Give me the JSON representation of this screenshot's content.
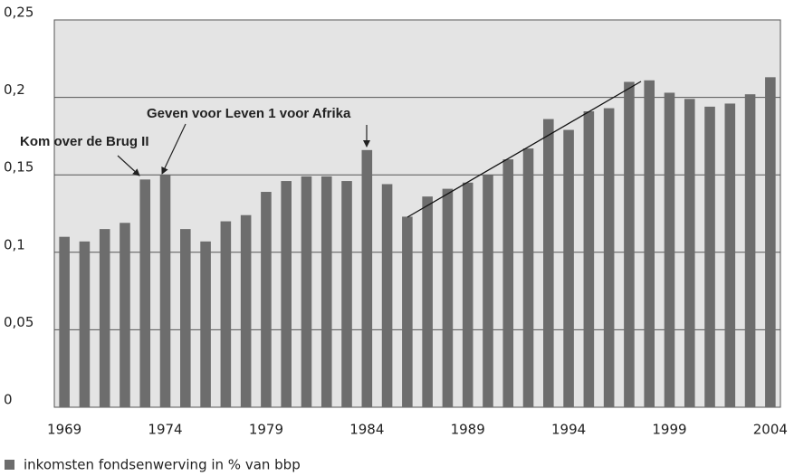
{
  "chart_data": {
    "type": "bar",
    "annotations": [
      "Kom over de Brug II",
      "Geven voor Leven  1 voor Afrika"
    ],
    "categories": [
      "1969",
      null,
      null,
      null,
      null,
      "1974",
      null,
      null,
      null,
      null,
      "1979",
      null,
      null,
      null,
      null,
      "1984",
      null,
      null,
      null,
      null,
      "1989",
      null,
      null,
      null,
      null,
      "1994",
      null,
      null,
      null,
      null,
      "1999",
      null,
      null,
      null,
      null,
      "2004"
    ],
    "series": [
      {
        "name": "inkomsten fondsenwerving in % van bbp",
        "color": "#6d6d6d",
        "values": [
          0.11,
          0.107,
          0.115,
          0.119,
          0.147,
          0.15,
          0.115,
          0.107,
          0.12,
          0.124,
          0.139,
          0.146,
          0.149,
          0.149,
          0.146,
          0.166,
          0.144,
          0.123,
          0.136,
          0.141,
          0.145,
          0.15,
          0.16,
          0.167,
          0.186,
          0.179,
          0.191,
          0.193,
          0.21,
          0.211,
          0.203,
          0.199,
          0.194,
          0.196,
          0.202,
          0.213
        ]
      }
    ],
    "ylim": [
      0,
      0.25
    ],
    "yticks": [
      0,
      {
        "value": 0.05,
        "label": "0,05"
      },
      {
        "value": 0.1,
        "label": "0,1"
      },
      {
        "value": 0.15,
        "label": "0,15"
      },
      {
        "value": 0.2,
        "label": "0,2"
      },
      {
        "value": 0.25,
        "label": "0,25"
      }
    ],
    "grid": true
  }
}
